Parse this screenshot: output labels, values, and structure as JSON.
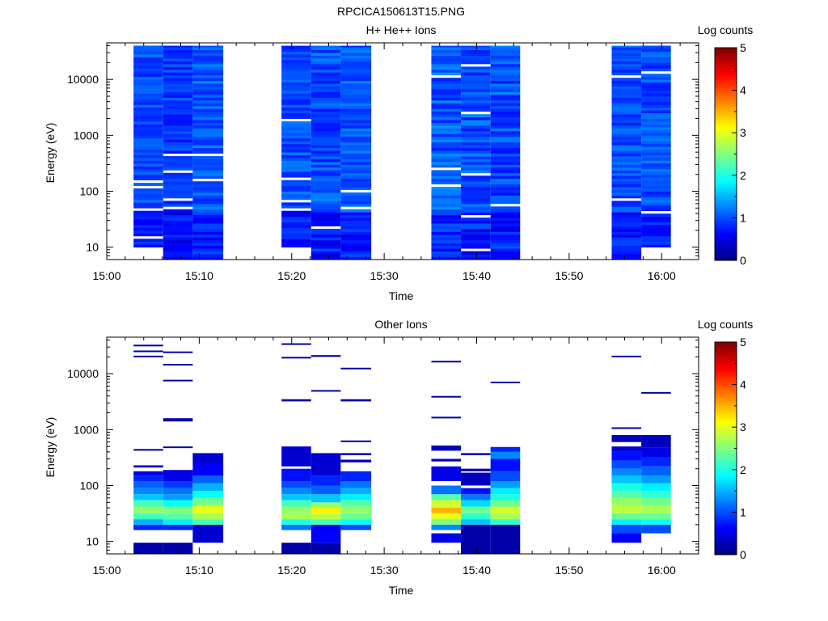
{
  "figure_title": "RPCICA150613T15.PNG",
  "colormap": [
    "#00007f",
    "#0000ff",
    "#007fff",
    "#00ffff",
    "#7fff7f",
    "#ffff00",
    "#ff7f00",
    "#ff0000",
    "#7f0000"
  ],
  "chart_data": [
    {
      "type": "heatmap",
      "title": "H+ He++ Ions",
      "xlabel": "Time",
      "ylabel": "Energy (eV)",
      "colorbar_label": "Log counts",
      "x_ticks": [
        "15:00",
        "15:10",
        "15:20",
        "15:30",
        "15:40",
        "15:50",
        "16:00"
      ],
      "x_range_minutes": [
        0,
        64
      ],
      "y_ticks": [
        "10",
        "100",
        "1000",
        "10000"
      ],
      "y_log_range": [
        6,
        45000
      ],
      "color_range": [
        0,
        5
      ],
      "colorbar_ticks": [
        "0",
        "1",
        "2",
        "3",
        "4",
        "5"
      ],
      "emin": 6,
      "emax": 40000,
      "scans": [
        {
          "start": 2.9,
          "end": 6.1,
          "low": 10,
          "mean": 1.0,
          "amp": 0.25,
          "gaps": [
            15,
            45,
            120,
            155
          ]
        },
        {
          "start": 6.1,
          "end": 9.3,
          "low": 6,
          "mean": 0.9,
          "amp": 0.25,
          "gaps": [
            50,
            70,
            220,
            440
          ]
        },
        {
          "start": 9.3,
          "end": 12.6,
          "low": 6,
          "mean": 1.05,
          "amp": 0.25,
          "gaps": [
            160,
            440
          ]
        },
        {
          "start": 18.9,
          "end": 22.1,
          "low": 10,
          "mean": 1.0,
          "amp": 0.25,
          "gaps": [
            45,
            65,
            170,
            1900
          ]
        },
        {
          "start": 22.1,
          "end": 25.3,
          "low": 6,
          "mean": 1.0,
          "amp": 0.3,
          "gaps": [
            22
          ]
        },
        {
          "start": 25.3,
          "end": 28.6,
          "low": 6,
          "mean": 1.05,
          "amp": 0.25,
          "gaps": [
            50,
            100
          ]
        },
        {
          "start": 35.1,
          "end": 38.3,
          "low": 6,
          "mean": 1.05,
          "amp": 0.3,
          "gaps": [
            120,
            250,
            11000
          ]
        },
        {
          "start": 38.3,
          "end": 41.5,
          "low": 6,
          "mean": 1.0,
          "amp": 0.3,
          "gaps": [
            9,
            35,
            190,
            2600,
            17000
          ]
        },
        {
          "start": 41.5,
          "end": 44.7,
          "low": 6,
          "mean": 1.0,
          "amp": 0.3,
          "gaps": [
            55
          ]
        },
        {
          "start": 54.6,
          "end": 57.8,
          "low": 6,
          "mean": 1.0,
          "amp": 0.25,
          "gaps": [
            70,
            11000
          ]
        },
        {
          "start": 57.8,
          "end": 61.0,
          "low": 10,
          "mean": 1.0,
          "amp": 0.25,
          "gaps": [
            40,
            14000
          ]
        }
      ]
    },
    {
      "type": "heatmap",
      "title": "Other Ions",
      "xlabel": "Time",
      "ylabel": "Energy (eV)",
      "colorbar_label": "Log counts",
      "x_ticks": [
        "15:00",
        "15:10",
        "15:20",
        "15:30",
        "15:40",
        "15:50",
        "16:00"
      ],
      "x_range_minutes": [
        0,
        64
      ],
      "y_ticks": [
        "10",
        "100",
        "1000",
        "10000"
      ],
      "y_log_range": [
        6,
        45000
      ],
      "color_range": [
        0,
        5
      ],
      "colorbar_ticks": [
        "0",
        "1",
        "2",
        "3",
        "4",
        "5"
      ],
      "scans": [
        {
          "start": 2.9,
          "end": 6.1,
          "bins": [
            [
              6,
              9.5,
              0.2
            ],
            [
              16,
              20,
              0.8
            ],
            [
              20,
              25,
              1.5
            ],
            [
              25,
              32,
              2.2
            ],
            [
              32,
              42,
              2.6
            ],
            [
              42,
              55,
              2.2
            ],
            [
              55,
              70,
              1.6
            ],
            [
              70,
              90,
              1.3
            ],
            [
              90,
              120,
              1.1
            ],
            [
              120,
              150,
              0.8
            ],
            [
              150,
              180,
              0.5
            ],
            [
              210,
              230,
              0.3
            ],
            [
              420,
              450,
              0.2
            ],
            [
              20000,
              21000,
              0.2
            ],
            [
              25000,
              26000,
              0.2
            ],
            [
              31000,
              33000,
              0.2
            ]
          ]
        },
        {
          "start": 6.1,
          "end": 9.3,
          "bins": [
            [
              6,
              9.5,
              0.2
            ],
            [
              16,
              20,
              0.8
            ],
            [
              20,
              25,
              1.8
            ],
            [
              25,
              32,
              2.3
            ],
            [
              32,
              42,
              2.5
            ],
            [
              42,
              55,
              1.9
            ],
            [
              55,
              70,
              1.4
            ],
            [
              70,
              90,
              1.2
            ],
            [
              90,
              120,
              0.9
            ],
            [
              120,
              190,
              0.5
            ],
            [
              470,
              500,
              0.2
            ],
            [
              1400,
              1600,
              0.2
            ],
            [
              7400,
              7800,
              0.2
            ],
            [
              14000,
              15000,
              0.2
            ],
            [
              24000,
              25000,
              0.2
            ]
          ]
        },
        {
          "start": 9.3,
          "end": 12.6,
          "bins": [
            [
              9.5,
              20,
              0.4
            ],
            [
              20,
              25,
              2.2
            ],
            [
              25,
              32,
              2.7
            ],
            [
              32,
              45,
              3.0
            ],
            [
              45,
              60,
              2.4
            ],
            [
              60,
              80,
              1.9
            ],
            [
              80,
              110,
              1.5
            ],
            [
              110,
              150,
              1.1
            ],
            [
              150,
              250,
              0.6
            ],
            [
              250,
              380,
              0.4
            ]
          ]
        },
        {
          "start": 18.9,
          "end": 22.1,
          "bins": [
            [
              6,
              9.5,
              0.2
            ],
            [
              16,
              20,
              1.2
            ],
            [
              20,
              25,
              2.0
            ],
            [
              25,
              32,
              2.7
            ],
            [
              32,
              42,
              2.6
            ],
            [
              42,
              55,
              2.2
            ],
            [
              55,
              70,
              1.6
            ],
            [
              70,
              90,
              1.3
            ],
            [
              90,
              120,
              1.0
            ],
            [
              120,
              200,
              0.7
            ],
            [
              220,
              500,
              0.4
            ],
            [
              3200,
              3500,
              0.2
            ],
            [
              19000,
              20000,
              0.2
            ],
            [
              33000,
              35000,
              0.2
            ]
          ]
        },
        {
          "start": 22.1,
          "end": 25.3,
          "bins": [
            [
              6,
              9.5,
              0.2
            ],
            [
              9.5,
              20,
              0.6
            ],
            [
              20,
              25,
              2.2
            ],
            [
              25,
              32,
              2.8
            ],
            [
              32,
              40,
              3.2
            ],
            [
              40,
              50,
              2.6
            ],
            [
              50,
              70,
              1.6
            ],
            [
              70,
              100,
              1.1
            ],
            [
              100,
              150,
              0.8
            ],
            [
              150,
              380,
              0.4
            ],
            [
              4800,
              5100,
              0.2
            ],
            [
              20000,
              21500,
              0.2
            ]
          ]
        },
        {
          "start": 25.3,
          "end": 28.6,
          "bins": [
            [
              16,
              20,
              1.0
            ],
            [
              20,
              25,
              1.9
            ],
            [
              25,
              32,
              2.4
            ],
            [
              32,
              42,
              2.6
            ],
            [
              42,
              55,
              2.3
            ],
            [
              55,
              70,
              1.8
            ],
            [
              70,
              90,
              1.5
            ],
            [
              90,
              120,
              1.2
            ],
            [
              120,
              180,
              0.8
            ],
            [
              260,
              290,
              0.3
            ],
            [
              350,
              380,
              0.2
            ],
            [
              600,
              640,
              0.2
            ],
            [
              3200,
              3500,
              0.2
            ],
            [
              12000,
              12800,
              0.2
            ]
          ]
        },
        {
          "start": 35.1,
          "end": 38.3,
          "bins": [
            [
              9.5,
              14,
              0.5
            ],
            [
              16,
              20,
              1.3
            ],
            [
              20,
              25,
              2.5
            ],
            [
              25,
              32,
              3.0
            ],
            [
              32,
              40,
              3.5
            ],
            [
              40,
              55,
              2.9
            ],
            [
              55,
              70,
              2.3
            ],
            [
              70,
              100,
              1.2
            ],
            [
              120,
              220,
              0.5
            ],
            [
              270,
              300,
              0.3
            ],
            [
              420,
              520,
              0.3
            ],
            [
              1600,
              1700,
              0.2
            ],
            [
              3800,
              4000,
              0.2
            ],
            [
              16000,
              17000,
              0.2
            ]
          ]
        },
        {
          "start": 38.3,
          "end": 41.5,
          "bins": [
            [
              6,
              20,
              0.2
            ],
            [
              20,
              25,
              1.6
            ],
            [
              25,
              32,
              2.1
            ],
            [
              32,
              42,
              2.4
            ],
            [
              42,
              55,
              1.7
            ],
            [
              55,
              70,
              1.2
            ],
            [
              70,
              90,
              0.7
            ],
            [
              100,
              170,
              0.3
            ],
            [
              180,
              200,
              0.2
            ],
            [
              350,
              380,
              0.3
            ]
          ]
        },
        {
          "start": 41.5,
          "end": 44.7,
          "bins": [
            [
              6,
              20,
              0.2
            ],
            [
              20,
              25,
              2.1
            ],
            [
              25,
              32,
              2.7
            ],
            [
              32,
              42,
              2.9
            ],
            [
              42,
              55,
              2.4
            ],
            [
              55,
              70,
              2.0
            ],
            [
              70,
              90,
              1.8
            ],
            [
              90,
              120,
              1.4
            ],
            [
              120,
              180,
              1.0
            ],
            [
              180,
              300,
              0.7
            ],
            [
              300,
              400,
              1.3
            ],
            [
              400,
              490,
              0.8
            ],
            [
              6800,
              7200,
              0.2
            ]
          ]
        },
        {
          "start": 54.6,
          "end": 57.8,
          "bins": [
            [
              9.5,
              14,
              0.6
            ],
            [
              14,
              20,
              1.0
            ],
            [
              20,
              25,
              1.8
            ],
            [
              25,
              32,
              2.4
            ],
            [
              32,
              45,
              2.8
            ],
            [
              45,
              60,
              2.6
            ],
            [
              60,
              80,
              2.3
            ],
            [
              80,
              110,
              2.0
            ],
            [
              110,
              150,
              1.6
            ],
            [
              150,
              200,
              1.3
            ],
            [
              200,
              280,
              1.0
            ],
            [
              280,
              400,
              0.7
            ],
            [
              400,
              500,
              0.4
            ],
            [
              600,
              800,
              0.3
            ],
            [
              1050,
              1100,
              0.2
            ],
            [
              20000,
              21000,
              0.2
            ]
          ]
        },
        {
          "start": 57.8,
          "end": 61.0,
          "bins": [
            [
              14,
              20,
              1.0
            ],
            [
              20,
              25,
              1.9
            ],
            [
              25,
              32,
              2.4
            ],
            [
              32,
              45,
              2.7
            ],
            [
              45,
              60,
              2.4
            ],
            [
              60,
              80,
              2.1
            ],
            [
              80,
              110,
              1.8
            ],
            [
              110,
              150,
              1.4
            ],
            [
              150,
              220,
              1.1
            ],
            [
              220,
              320,
              0.8
            ],
            [
              320,
              480,
              0.5
            ],
            [
              480,
              800,
              0.3
            ],
            [
              4500,
              4700,
              0.2
            ]
          ]
        }
      ]
    }
  ]
}
